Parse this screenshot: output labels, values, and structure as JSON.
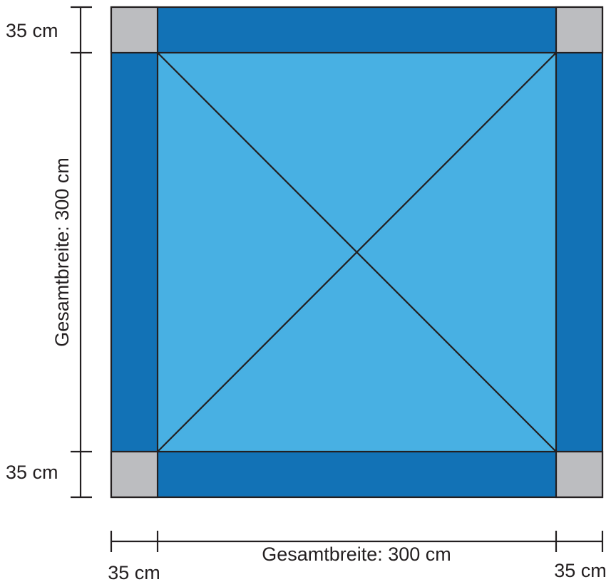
{
  "colors": {
    "border_band": "#1272b6",
    "center_panel": "#48b0e3",
    "corner_square": "#bcbdc0",
    "lines": "#231f20",
    "background": "#ffffff"
  },
  "labels": {
    "top_margin": "35 cm",
    "bottom_margin": "35 cm",
    "left_total": "Gesamtbreite: 300 cm",
    "bottom_total": "Gesamtbreite: 300 cm",
    "bottom_left_margin": "35 cm",
    "bottom_right_margin": "35 cm"
  }
}
